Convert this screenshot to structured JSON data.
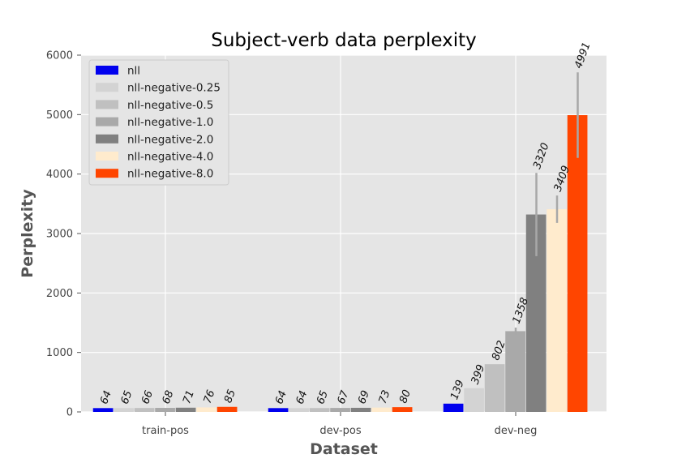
{
  "chart_data": {
    "type": "bar",
    "title": "Subject-verb data perplexity",
    "xlabel": "Dataset",
    "ylabel": "Perplexity",
    "categories": [
      "train-pos",
      "dev-pos",
      "dev-neg"
    ],
    "ylim": [
      0,
      6000
    ],
    "yticks": [
      "0",
      "1000",
      "2000",
      "3000",
      "4000",
      "5000",
      "6000"
    ],
    "grid": true,
    "legend_position": "top-left",
    "series": [
      {
        "name": "nll",
        "color": "#0000ee",
        "values": [
          64,
          64,
          139
        ],
        "labels": [
          "64",
          "64",
          "139"
        ],
        "error": [
          0,
          0,
          0
        ]
      },
      {
        "name": "nll-negative-0.25",
        "color": "#d3d3d3",
        "values": [
          65,
          64,
          399
        ],
        "labels": [
          "65",
          "64",
          "399"
        ],
        "error": [
          0,
          0,
          0
        ]
      },
      {
        "name": "nll-negative-0.5",
        "color": "#c0c0c0",
        "values": [
          66,
          65,
          802
        ],
        "labels": [
          "66",
          "65",
          "802"
        ],
        "error": [
          0,
          0,
          0
        ]
      },
      {
        "name": "nll-negative-1.0",
        "color": "#a9a9a9",
        "values": [
          68,
          67,
          1358
        ],
        "labels": [
          "68",
          "67",
          "1358"
        ],
        "error": [
          0,
          0,
          60
        ]
      },
      {
        "name": "nll-negative-2.0",
        "color": "#808080",
        "values": [
          71,
          69,
          3320
        ],
        "labels": [
          "71",
          "69",
          "3320"
        ],
        "error": [
          0,
          0,
          700
        ]
      },
      {
        "name": "nll-negative-4.0",
        "color": "#ffebcd",
        "values": [
          76,
          73,
          3409
        ],
        "labels": [
          "76",
          "73",
          "3409"
        ],
        "error": [
          0,
          0,
          230
        ]
      },
      {
        "name": "nll-negative-8.0",
        "color": "#ff4500",
        "values": [
          85,
          80,
          4991
        ],
        "labels": [
          "85",
          "80",
          "4991"
        ],
        "error": [
          0,
          0,
          720
        ]
      }
    ]
  }
}
